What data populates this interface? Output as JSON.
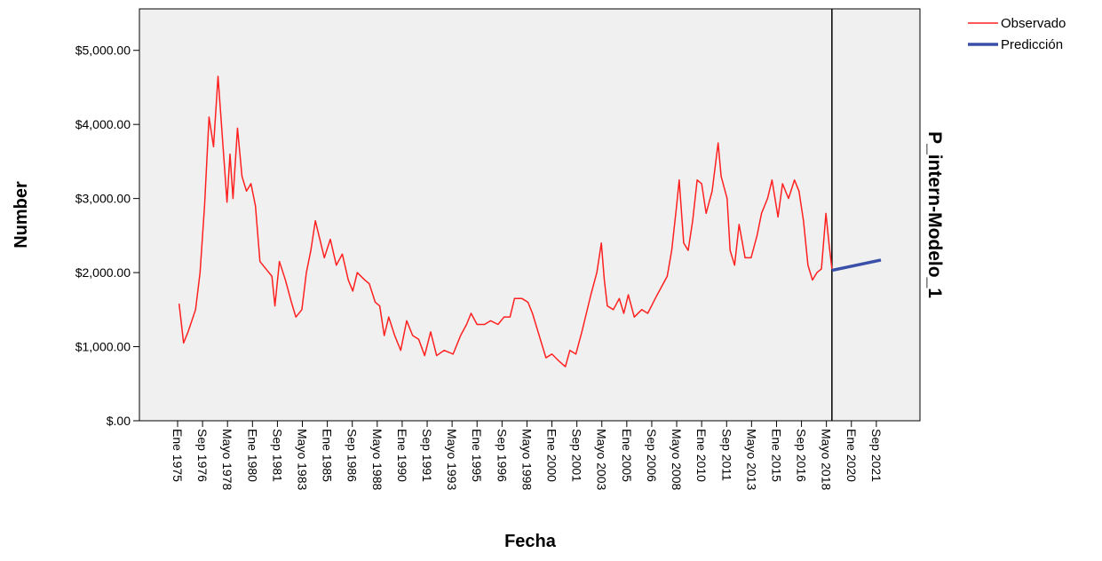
{
  "chart_data": {
    "type": "line",
    "xlabel": "Fecha",
    "ylabel": "Number",
    "right_label": "P_intern-Modelo_1",
    "xlim": [
      1972.45,
      2024.58
    ],
    "ylim": [
      0,
      5560
    ],
    "xticks": [
      {
        "value": 1975,
        "label": "Ene 1975"
      },
      {
        "value": 1976.667,
        "label": "Sep 1976"
      },
      {
        "value": 1978.333,
        "label": "Mayo 1978"
      },
      {
        "value": 1980,
        "label": "Ene 1980"
      },
      {
        "value": 1981.667,
        "label": "Sep 1981"
      },
      {
        "value": 1983.333,
        "label": "Mayo 1983"
      },
      {
        "value": 1985,
        "label": "Ene 1985"
      },
      {
        "value": 1986.667,
        "label": "Sep 1986"
      },
      {
        "value": 1988.333,
        "label": "Mayo 1988"
      },
      {
        "value": 1990,
        "label": "Ene 1990"
      },
      {
        "value": 1991.667,
        "label": "Sep 1991"
      },
      {
        "value": 1993.333,
        "label": "Mayo 1993"
      },
      {
        "value": 1995,
        "label": "Ene 1995"
      },
      {
        "value": 1996.667,
        "label": "Sep 1996"
      },
      {
        "value": 1998.333,
        "label": "Mayo 1998"
      },
      {
        "value": 2000,
        "label": "Ene 2000"
      },
      {
        "value": 2001.667,
        "label": "Sep 2001"
      },
      {
        "value": 2003.333,
        "label": "Mayo 2003"
      },
      {
        "value": 2005,
        "label": "Ene 2005"
      },
      {
        "value": 2006.667,
        "label": "Sep 2006"
      },
      {
        "value": 2008.333,
        "label": "Mayo 2008"
      },
      {
        "value": 2010,
        "label": "Ene 2010"
      },
      {
        "value": 2011.667,
        "label": "Sep 2011"
      },
      {
        "value": 2013.333,
        "label": "Mayo 2013"
      },
      {
        "value": 2015,
        "label": "Ene 2015"
      },
      {
        "value": 2016.667,
        "label": "Sep 2016"
      },
      {
        "value": 2018.333,
        "label": "Mayo 2018"
      },
      {
        "value": 2020,
        "label": "Ene 2020"
      },
      {
        "value": 2021.667,
        "label": "Sep 2021"
      }
    ],
    "yticks": [
      {
        "value": 0,
        "label": "$.00"
      },
      {
        "value": 1000,
        "label": "$1,000.00"
      },
      {
        "value": 2000,
        "label": "$2,000.00"
      },
      {
        "value": 3000,
        "label": "$3,000.00"
      },
      {
        "value": 4000,
        "label": "$4,000.00"
      },
      {
        "value": 5000,
        "label": "$5,000.00"
      }
    ],
    "vline": 2018.7,
    "legend": "top-right",
    "series": [
      {
        "name": "Observado",
        "color": "#ff2020",
        "width": 1.5,
        "x": [
          1975.1,
          1975.4,
          1975.7,
          1976.2,
          1976.5,
          1976.8,
          1977.1,
          1977.4,
          1977.7,
          1978.0,
          1978.3,
          1978.5,
          1978.7,
          1979.0,
          1979.3,
          1979.6,
          1979.9,
          1980.2,
          1980.5,
          1980.9,
          1981.3,
          1981.5,
          1981.8,
          1982.2,
          1982.6,
          1982.9,
          1983.3,
          1983.6,
          1983.9,
          1984.2,
          1984.5,
          1984.8,
          1985.2,
          1985.6,
          1986.0,
          1986.4,
          1986.7,
          1987.0,
          1987.5,
          1987.8,
          1988.2,
          1988.5,
          1988.8,
          1989.1,
          1989.5,
          1989.9,
          1990.3,
          1990.7,
          1991.1,
          1991.5,
          1991.9,
          1992.3,
          1992.8,
          1993.4,
          1993.9,
          1994.3,
          1994.6,
          1995.0,
          1995.5,
          1995.9,
          1996.4,
          1996.8,
          1997.2,
          1997.5,
          1998.0,
          1998.4,
          1998.7,
          1999.0,
          1999.3,
          1999.6,
          2000.0,
          2000.5,
          2000.9,
          2001.2,
          2001.6,
          2002.0,
          2002.3,
          2002.6,
          2003.0,
          2003.3,
          2003.5,
          2003.7,
          2004.1,
          2004.5,
          2004.8,
          2005.1,
          2005.5,
          2006.0,
          2006.4,
          2006.9,
          2007.3,
          2007.7,
          2008.0,
          2008.3,
          2008.5,
          2008.8,
          2009.1,
          2009.4,
          2009.7,
          2010.0,
          2010.3,
          2010.7,
          2011.1,
          2011.3,
          2011.7,
          2011.9,
          2012.2,
          2012.5,
          2012.9,
          2013.3,
          2013.7,
          2014.0,
          2014.4,
          2014.7,
          2015.1,
          2015.4,
          2015.8,
          2016.2,
          2016.5,
          2016.8,
          2017.1,
          2017.4,
          2017.7,
          2018.0,
          2018.3,
          2018.5,
          2018.7
        ],
        "values": [
          1580,
          1050,
          1200,
          1500,
          2000,
          2900,
          4100,
          3700,
          4650,
          3800,
          2950,
          3600,
          3000,
          3950,
          3300,
          3100,
          3200,
          2900,
          2150,
          2050,
          1950,
          1550,
          2150,
          1900,
          1600,
          1400,
          1500,
          2000,
          2300,
          2700,
          2450,
          2200,
          2450,
          2100,
          2250,
          1900,
          1750,
          2000,
          1900,
          1850,
          1600,
          1550,
          1150,
          1400,
          1150,
          950,
          1350,
          1150,
          1100,
          880,
          1200,
          880,
          950,
          900,
          1150,
          1300,
          1450,
          1300,
          1300,
          1350,
          1300,
          1400,
          1400,
          1650,
          1650,
          1600,
          1450,
          1250,
          1050,
          850,
          900,
          800,
          730,
          950,
          900,
          1200,
          1450,
          1700,
          2000,
          2400,
          1900,
          1550,
          1500,
          1650,
          1450,
          1700,
          1400,
          1500,
          1450,
          1650,
          1800,
          1950,
          2300,
          2850,
          3250,
          2400,
          2300,
          2700,
          3250,
          3200,
          2800,
          3100,
          3750,
          3300,
          3000,
          2300,
          2100,
          2650,
          2200,
          2200,
          2500,
          2800,
          3000,
          3250,
          2750,
          3200,
          3000,
          3250,
          3100,
          2700,
          2100,
          1900,
          2000,
          2050,
          2800,
          2400,
          2050
        ]
      },
      {
        "name": "Predicción",
        "color": "#3a4fa8",
        "width": 3.5,
        "x": [
          2018.7,
          2021.97
        ],
        "values": [
          2030,
          2170
        ]
      }
    ]
  }
}
